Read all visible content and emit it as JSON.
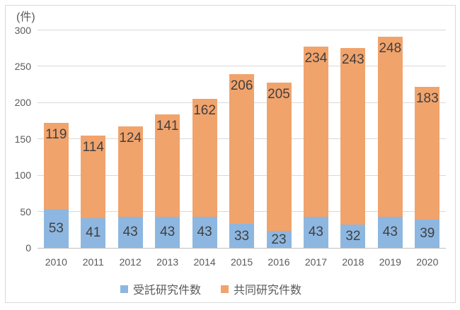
{
  "chart_data": {
    "type": "bar",
    "subtype": "stacked-column",
    "title": "",
    "unit_label": "(件)",
    "categories": [
      "2010",
      "2011",
      "2012",
      "2013",
      "2014",
      "2015",
      "2016",
      "2017",
      "2018",
      "2019",
      "2020"
    ],
    "series": [
      {
        "name": "受託研究件数",
        "color": "#8DB7E0",
        "values": [
          53,
          41,
          43,
          43,
          43,
          33,
          23,
          43,
          32,
          43,
          39
        ]
      },
      {
        "name": "共同研究件数",
        "color": "#F1A36C",
        "values": [
          119,
          114,
          124,
          141,
          162,
          206,
          205,
          234,
          243,
          248,
          183
        ]
      }
    ],
    "stack_totals": [
      172,
      155,
      167,
      184,
      205,
      239,
      228,
      277,
      275,
      291,
      222
    ],
    "ylim": [
      0,
      300
    ],
    "yticks": [
      0,
      50,
      100,
      150,
      200,
      250,
      300
    ],
    "grid": true,
    "data_labels": true,
    "legend_position": "bottom"
  },
  "colors": {
    "background": "#FFFFFF",
    "frame_border": "#D9D9D9",
    "gridline": "#D9D9D9",
    "zero_axis": "#BFBFBF",
    "axis_text": "#595959",
    "data_label_text": "#404040"
  }
}
